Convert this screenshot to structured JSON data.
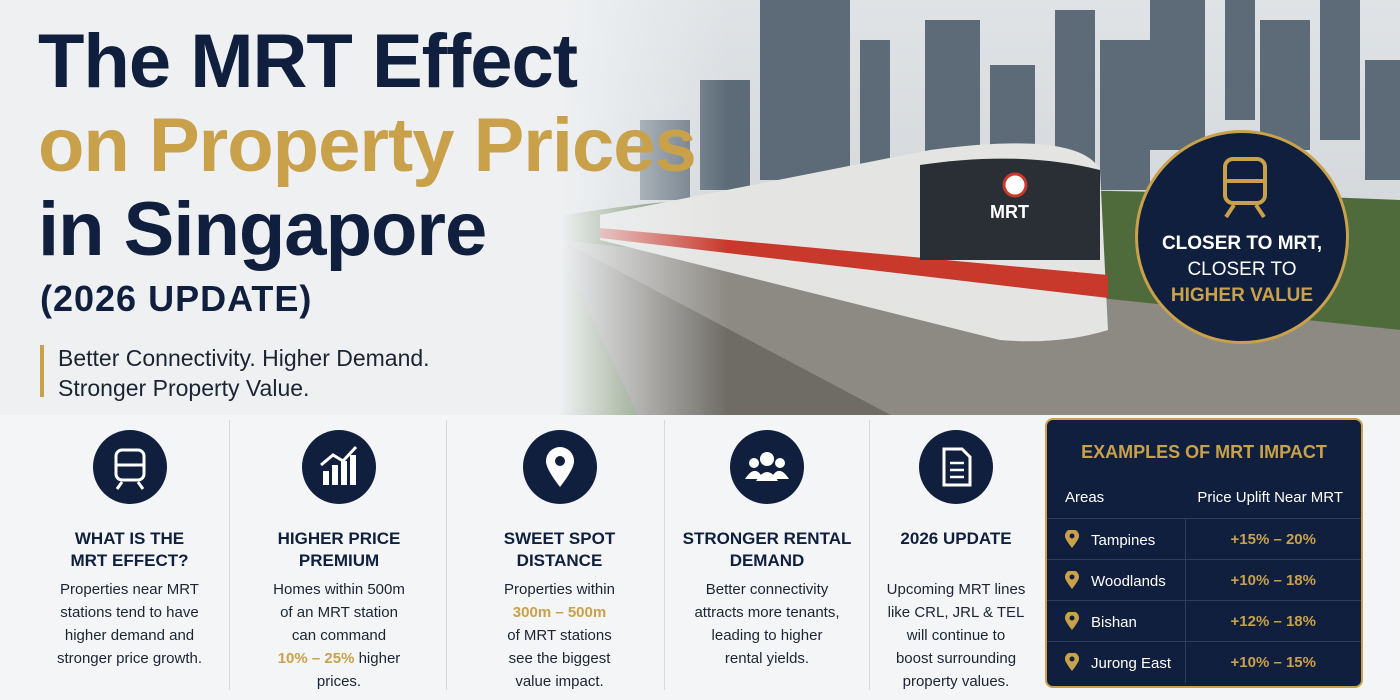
{
  "header": {
    "line1": "The MRT Effect",
    "line2": "on Property Prices",
    "line3": "in Singapore",
    "update": "(2026 UPDATE)"
  },
  "tagline": [
    "Better Connectivity. Higher Demand.",
    "Stronger Property Value."
  ],
  "train_label": "MRT",
  "badge": [
    "CLOSER TO MRT,",
    "CLOSER TO",
    "HIGHER VALUE"
  ],
  "cards": [
    {
      "title": [
        "WHAT IS THE",
        "MRT EFFECT?"
      ],
      "lines": [
        "Properties near MRT",
        "stations tend to have",
        "higher demand and",
        "stronger price growth."
      ]
    },
    {
      "title": [
        "HIGHER PRICE",
        "PREMIUM"
      ],
      "lines": [
        "Homes within 500m",
        "of an MRT station",
        "can command",
        {
          "accent": "10% – 25%",
          "text": "higher"
        },
        "prices."
      ]
    },
    {
      "title": [
        "SWEET SPOT",
        "DISTANCE"
      ],
      "lines": [
        "Properties within",
        {
          "accent": "300m – 500m"
        },
        "of MRT stations",
        "see the biggest",
        "value impact."
      ]
    },
    {
      "title": [
        "STRONGER RENTAL",
        "DEMAND"
      ],
      "lines": [
        "Better connectivity",
        "attracts more tenants,",
        "leading to higher",
        "rental yields."
      ]
    },
    {
      "title": [
        "2026 UPDATE"
      ],
      "lines": [
        "Upcoming MRT lines",
        "like CRL, JRL & TEL",
        "will continue to",
        "boost surrounding",
        "property values."
      ]
    }
  ],
  "table": {
    "title": "EXAMPLES OF MRT IMPACT",
    "headers": [
      "Areas",
      "Price Uplift Near MRT"
    ],
    "rows": [
      [
        "Tampines",
        "+15% – 20%"
      ],
      [
        "Woodlands",
        "+10% – 18%"
      ],
      [
        "Bishan",
        "+12% – 18%"
      ],
      [
        "Jurong East",
        "+10% – 15%"
      ]
    ]
  }
}
